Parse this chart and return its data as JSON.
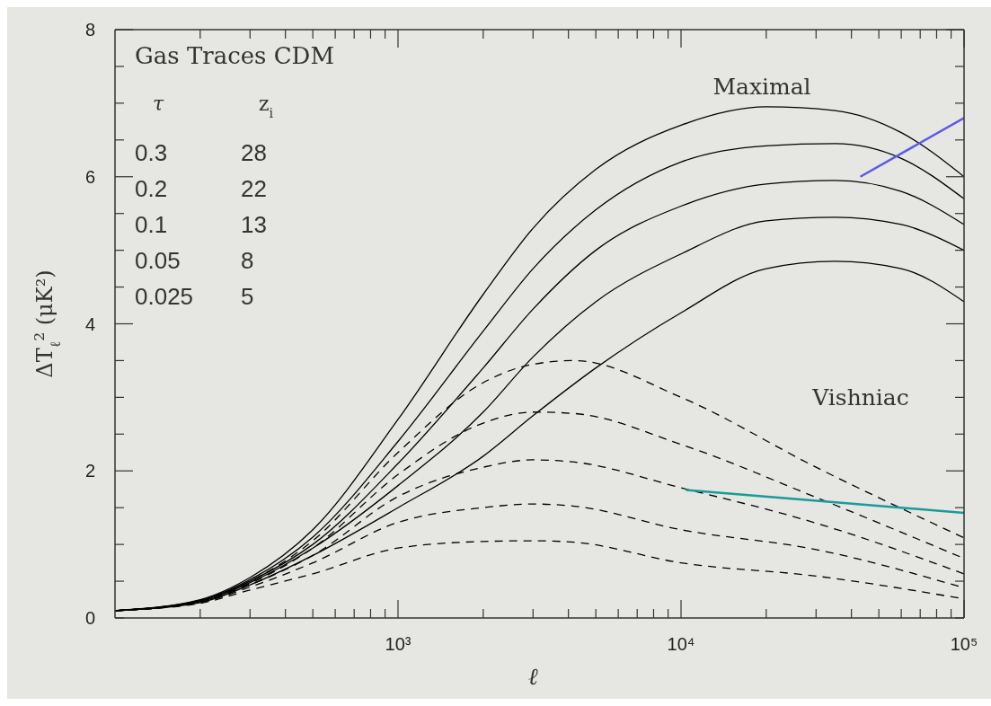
{
  "chart_data": {
    "type": "line",
    "title": "Gas Traces CDM",
    "xlabel": "ℓ",
    "ylabel": "ΔT$_{ℓ}$$^{2}$  (μK²)",
    "log": "x",
    "marker": "none",
    "xlim": [
      100,
      100000
    ],
    "ylim": [
      0,
      8
    ],
    "xticks": [
      {
        "value": 200,
        "label": null
      },
      {
        "value": 300,
        "label": null
      },
      {
        "value": 400,
        "label": null
      },
      {
        "value": 500,
        "label": null
      },
      {
        "value": 600,
        "label": null
      },
      {
        "value": 700,
        "label": null
      },
      {
        "value": 800,
        "label": null
      },
      {
        "value": 900,
        "label": null
      },
      {
        "value": 1000,
        "label": "10³"
      },
      {
        "value": 2000,
        "label": null
      },
      {
        "value": 3000,
        "label": null
      },
      {
        "value": 4000,
        "label": null
      },
      {
        "value": 5000,
        "label": null
      },
      {
        "value": 6000,
        "label": null
      },
      {
        "value": 7000,
        "label": null
      },
      {
        "value": 8000,
        "label": null
      },
      {
        "value": 9000,
        "label": null
      },
      {
        "value": 10000,
        "label": "10⁴"
      },
      {
        "value": 20000,
        "label": null
      },
      {
        "value": 30000,
        "label": null
      },
      {
        "value": 40000,
        "label": null
      },
      {
        "value": 50000,
        "label": null
      },
      {
        "value": 60000,
        "label": null
      },
      {
        "value": 70000,
        "label": null
      },
      {
        "value": 80000,
        "label": null
      },
      {
        "value": 90000,
        "label": null
      },
      {
        "value": 100000,
        "label": "10⁵"
      }
    ],
    "yticks": [
      0,
      {
        "value": 0.5,
        "label": null
      },
      {
        "value": 1,
        "label": null
      },
      {
        "value": 1.5,
        "label": null
      },
      2,
      {
        "value": 2.5,
        "label": null
      },
      {
        "value": 3,
        "label": null
      },
      {
        "value": 3.5,
        "label": null
      },
      4,
      {
        "value": 4.5,
        "label": null
      },
      {
        "value": 5,
        "label": null
      },
      {
        "value": 5.5,
        "label": null
      },
      6,
      {
        "value": 6.5,
        "label": null
      },
      {
        "value": 7,
        "label": null
      },
      {
        "value": 7.5,
        "label": null
      },
      8
    ],
    "series": [
      {
        "color": "#000000",
        "line_style": "solid",
        "x": [
          100,
          200,
          300,
          500,
          1000,
          2000,
          3000,
          5000,
          10000,
          20000,
          35000,
          60000,
          100000
        ],
        "values": [
          0.1,
          0.25,
          0.55,
          1.2,
          2.7,
          4.4,
          5.3,
          6.1,
          6.7,
          6.95,
          6.9,
          6.6,
          6.0
        ]
      },
      {
        "color": "#000000",
        "line_style": "solid",
        "x": [
          100,
          200,
          300,
          500,
          1000,
          2000,
          3000,
          5000,
          10000,
          20000,
          35000,
          60000,
          100000
        ],
        "values": [
          0.1,
          0.24,
          0.52,
          1.1,
          2.4,
          3.9,
          4.75,
          5.55,
          6.2,
          6.42,
          6.45,
          6.25,
          5.7
        ]
      },
      {
        "color": "#000000",
        "line_style": "solid",
        "x": [
          100,
          200,
          300,
          500,
          1000,
          2000,
          3000,
          5000,
          10000,
          20000,
          35000,
          60000,
          100000
        ],
        "values": [
          0.1,
          0.23,
          0.5,
          1.0,
          2.1,
          3.4,
          4.2,
          5.0,
          5.6,
          5.9,
          5.95,
          5.8,
          5.35
        ]
      },
      {
        "color": "#000000",
        "line_style": "solid",
        "x": [
          100,
          200,
          300,
          500,
          1000,
          2000,
          3000,
          5000,
          10000,
          20000,
          35000,
          60000,
          100000
        ],
        "values": [
          0.1,
          0.22,
          0.48,
          0.95,
          1.8,
          2.8,
          3.55,
          4.3,
          4.95,
          5.4,
          5.45,
          5.35,
          5.0
        ]
      },
      {
        "color": "#000000",
        "line_style": "solid",
        "x": [
          100,
          200,
          300,
          500,
          1000,
          2000,
          3000,
          5000,
          10000,
          20000,
          35000,
          60000,
          100000
        ],
        "values": [
          0.1,
          0.21,
          0.45,
          0.85,
          1.5,
          2.2,
          2.75,
          3.4,
          4.15,
          4.75,
          4.85,
          4.75,
          4.3
        ]
      },
      {
        "color": "#000000",
        "line_style": "dashed",
        "x": [
          100,
          200,
          300,
          500,
          1000,
          2000,
          3000,
          4200,
          10000,
          30000,
          100000
        ],
        "values": [
          0.1,
          0.24,
          0.5,
          1.05,
          2.25,
          3.2,
          3.45,
          3.5,
          3.0,
          2.05,
          1.09
        ]
      },
      {
        "color": "#000000",
        "line_style": "dashed",
        "x": [
          100,
          200,
          300,
          500,
          1000,
          2000,
          3000,
          4200,
          10000,
          30000,
          100000
        ],
        "values": [
          0.1,
          0.23,
          0.47,
          0.95,
          1.95,
          2.65,
          2.8,
          2.78,
          2.36,
          1.64,
          0.81
        ]
      },
      {
        "color": "#000000",
        "line_style": "dashed",
        "x": [
          100,
          200,
          300,
          500,
          1000,
          2000,
          3000,
          4200,
          10000,
          30000,
          100000
        ],
        "values": [
          0.1,
          0.22,
          0.45,
          0.85,
          1.65,
          2.05,
          2.15,
          2.12,
          1.77,
          1.29,
          0.6
        ]
      },
      {
        "color": "#000000",
        "line_style": "dashed",
        "x": [
          100,
          200,
          300,
          500,
          1000,
          2000,
          3000,
          4200,
          10000,
          30000,
          100000
        ],
        "values": [
          0.1,
          0.21,
          0.42,
          0.75,
          1.3,
          1.5,
          1.55,
          1.52,
          1.2,
          0.93,
          0.41
        ]
      },
      {
        "color": "#000000",
        "line_style": "dashed",
        "x": [
          100,
          200,
          300,
          500,
          1000,
          2000,
          3000,
          4200,
          10000,
          30000,
          100000
        ],
        "values": [
          0.1,
          0.2,
          0.38,
          0.6,
          0.95,
          1.04,
          1.05,
          1.03,
          0.75,
          0.57,
          0.26
        ]
      },
      {
        "color": "#5a5ae6",
        "line_style": "solid",
        "x": [
          43000,
          100000
        ],
        "values": [
          6.0,
          6.8
        ]
      },
      {
        "color": "#1a9a9a",
        "line_style": "solid",
        "x": [
          10400,
          100000
        ],
        "values": [
          1.74,
          1.43
        ]
      }
    ],
    "annotations": [
      "τ",
      "z$_{i}$",
      "0.3",
      "28",
      "0.2",
      "22",
      "0.1",
      "13",
      "0.05",
      "8",
      "0.025",
      "5",
      "Maximal",
      "Vishniac"
    ]
  }
}
